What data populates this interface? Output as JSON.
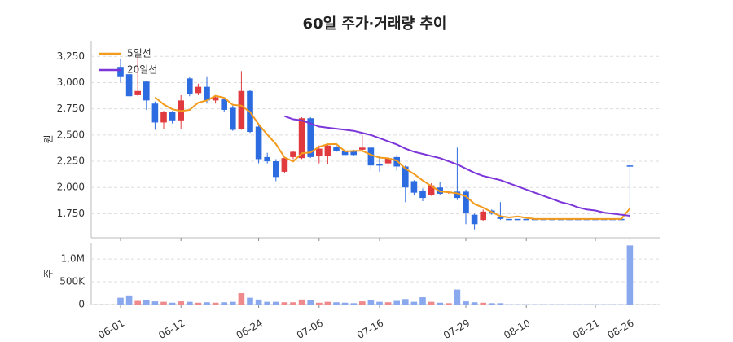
{
  "chart_data": [
    {
      "type": "candlestick",
      "title": "60일 주가·거래량 추이",
      "y_label": "원",
      "open": [
        3150,
        3080,
        2880,
        3010,
        2800,
        2620,
        2720,
        2640,
        3040,
        2900,
        2960,
        2830,
        2840,
        2760,
        2560,
        2920,
        2580,
        2290,
        2250,
        2150,
        2290,
        2280,
        2660,
        2300,
        2300,
        2390,
        2350,
        2350,
        2360,
        2380,
        2220,
        2230,
        2290,
        2200,
        2060,
        1970,
        1930,
        2000,
        1950,
        1960,
        1960,
        1740,
        1690,
        1780,
        1720,
        1700,
        1700,
        1700,
        1700,
        1700,
        1700,
        1700,
        1700,
        1700,
        1700,
        1700,
        1700,
        1700,
        1700,
        2210
      ],
      "high": [
        3230,
        3090,
        3250,
        3020,
        2820,
        2730,
        2730,
        2880,
        3050,
        2990,
        3060,
        2870,
        2860,
        2780,
        3110,
        2930,
        2610,
        2330,
        2270,
        2290,
        2350,
        2670,
        2670,
        2400,
        2420,
        2400,
        2370,
        2360,
        2500,
        2390,
        2300,
        2290,
        2310,
        2210,
        2070,
        1990,
        2040,
        2050,
        1970,
        2380,
        1980,
        1750,
        1790,
        1790,
        1860,
        1700,
        1700,
        1700,
        1700,
        1700,
        1700,
        1700,
        1700,
        1700,
        1700,
        1700,
        1700,
        1700,
        1700,
        2220
      ],
      "low": [
        3000,
        2850,
        2870,
        2740,
        2550,
        2560,
        2610,
        2560,
        2870,
        2880,
        2800,
        2800,
        2720,
        2540,
        2550,
        2520,
        2230,
        2230,
        2060,
        2140,
        2270,
        2270,
        2280,
        2230,
        2220,
        2340,
        2290,
        2300,
        2340,
        2160,
        2150,
        2200,
        2160,
        1860,
        1930,
        1870,
        1920,
        1930,
        1940,
        1880,
        1650,
        1600,
        1680,
        1740,
        1690,
        1700,
        1700,
        1700,
        1700,
        1700,
        1700,
        1700,
        1700,
        1700,
        1700,
        1700,
        1700,
        1700,
        1700,
        1700
      ],
      "close": [
        3060,
        2870,
        2920,
        2830,
        2620,
        2720,
        2640,
        2830,
        2890,
        2960,
        2830,
        2860,
        2740,
        2550,
        2920,
        2530,
        2270,
        2250,
        2100,
        2280,
        2340,
        2660,
        2290,
        2370,
        2400,
        2350,
        2310,
        2310,
        2380,
        2210,
        2210,
        2280,
        2200,
        2000,
        1950,
        1900,
        2020,
        1940,
        1960,
        1900,
        1760,
        1650,
        1770,
        1750,
        1700,
        1700,
        1700,
        1700,
        1700,
        1700,
        1700,
        1700,
        1700,
        1700,
        1700,
        1700,
        1700,
        1700,
        1700,
        2200
      ],
      "up_color": "#e03a3e",
      "down_color": "#2d6be0",
      "series": [
        {
          "name": "5일선",
          "color": "#f29b1d",
          "values": [
            null,
            null,
            null,
            null,
            2860,
            2792,
            2746,
            2728,
            2740,
            2808,
            2830,
            2874,
            2856,
            2788,
            2780,
            2720,
            2602,
            2504,
            2414,
            2286,
            2248,
            2326,
            2334,
            2388,
            2412,
            2414,
            2344,
            2348,
            2350,
            2312,
            2284,
            2278,
            2256,
            2180,
            2128,
            2066,
            2014,
            1962,
            1954,
            1944,
            1916,
            1842,
            1808,
            1766,
            1726,
            1714,
            1724,
            1710,
            1700,
            1700,
            1700,
            1700,
            1700,
            1700,
            1700,
            1700,
            1700,
            1700,
            1700,
            1800
          ]
        },
        {
          "name": "20일선",
          "color": "#7b35d9",
          "values": [
            null,
            null,
            null,
            null,
            null,
            null,
            null,
            null,
            null,
            null,
            null,
            null,
            null,
            null,
            null,
            null,
            null,
            null,
            null,
            2680,
            2650,
            2640,
            2610,
            2580,
            2570,
            2560,
            2550,
            2540,
            2520,
            2500,
            2470,
            2440,
            2410,
            2370,
            2340,
            2320,
            2300,
            2280,
            2250,
            2220,
            2180,
            2140,
            2110,
            2090,
            2070,
            2040,
            2010,
            1980,
            1950,
            1920,
            1890,
            1860,
            1840,
            1810,
            1790,
            1780,
            1760,
            1750,
            1740,
            1730
          ]
        }
      ],
      "legend": "top-left",
      "grid": true,
      "ylim": [
        1520,
        3400
      ],
      "yticks": [
        {
          "value": 1750,
          "label": "1,750"
        },
        {
          "value": 2000,
          "label": "2,000"
        },
        {
          "value": 2250,
          "label": "2,250"
        },
        {
          "value": 2500,
          "label": "2,500"
        },
        {
          "value": 2750,
          "label": "2,750"
        },
        {
          "value": 3000,
          "label": "3,000"
        },
        {
          "value": 3250,
          "label": "3,250"
        }
      ]
    },
    {
      "type": "bar",
      "y_label": "주",
      "categories": [
        "06-01",
        null,
        null,
        null,
        null,
        null,
        null,
        "06-12",
        null,
        null,
        null,
        null,
        null,
        null,
        null,
        null,
        "06-24",
        null,
        null,
        null,
        null,
        null,
        null,
        "07-06",
        null,
        null,
        null,
        null,
        null,
        null,
        "07-16",
        null,
        null,
        null,
        null,
        null,
        null,
        null,
        null,
        null,
        "07-29",
        null,
        null,
        null,
        null,
        null,
        null,
        "08-10",
        null,
        null,
        null,
        null,
        null,
        null,
        null,
        "08-21",
        null,
        null,
        null,
        "08-26"
      ],
      "values": [
        150000,
        200000,
        80000,
        90000,
        70000,
        60000,
        40000,
        70000,
        60000,
        40000,
        50000,
        40000,
        50000,
        60000,
        250000,
        150000,
        110000,
        60000,
        60000,
        50000,
        50000,
        110000,
        90000,
        40000,
        60000,
        50000,
        40000,
        30000,
        70000,
        90000,
        60000,
        50000,
        80000,
        120000,
        60000,
        160000,
        60000,
        40000,
        30000,
        330000,
        70000,
        50000,
        40000,
        30000,
        30000,
        5000,
        5000,
        5000,
        5000,
        5000,
        5000,
        5000,
        5000,
        5000,
        5000,
        5000,
        5000,
        5000,
        5000,
        1300000
      ],
      "up_color": "#ee8a8c",
      "down_color": "#8aa8ee",
      "grid": true,
      "ylim": [
        0,
        1360000
      ],
      "yticks": [
        0,
        {
          "value": 500000,
          "label": "500K"
        },
        {
          "value": 1000000,
          "label": "1.0M"
        }
      ]
    }
  ]
}
